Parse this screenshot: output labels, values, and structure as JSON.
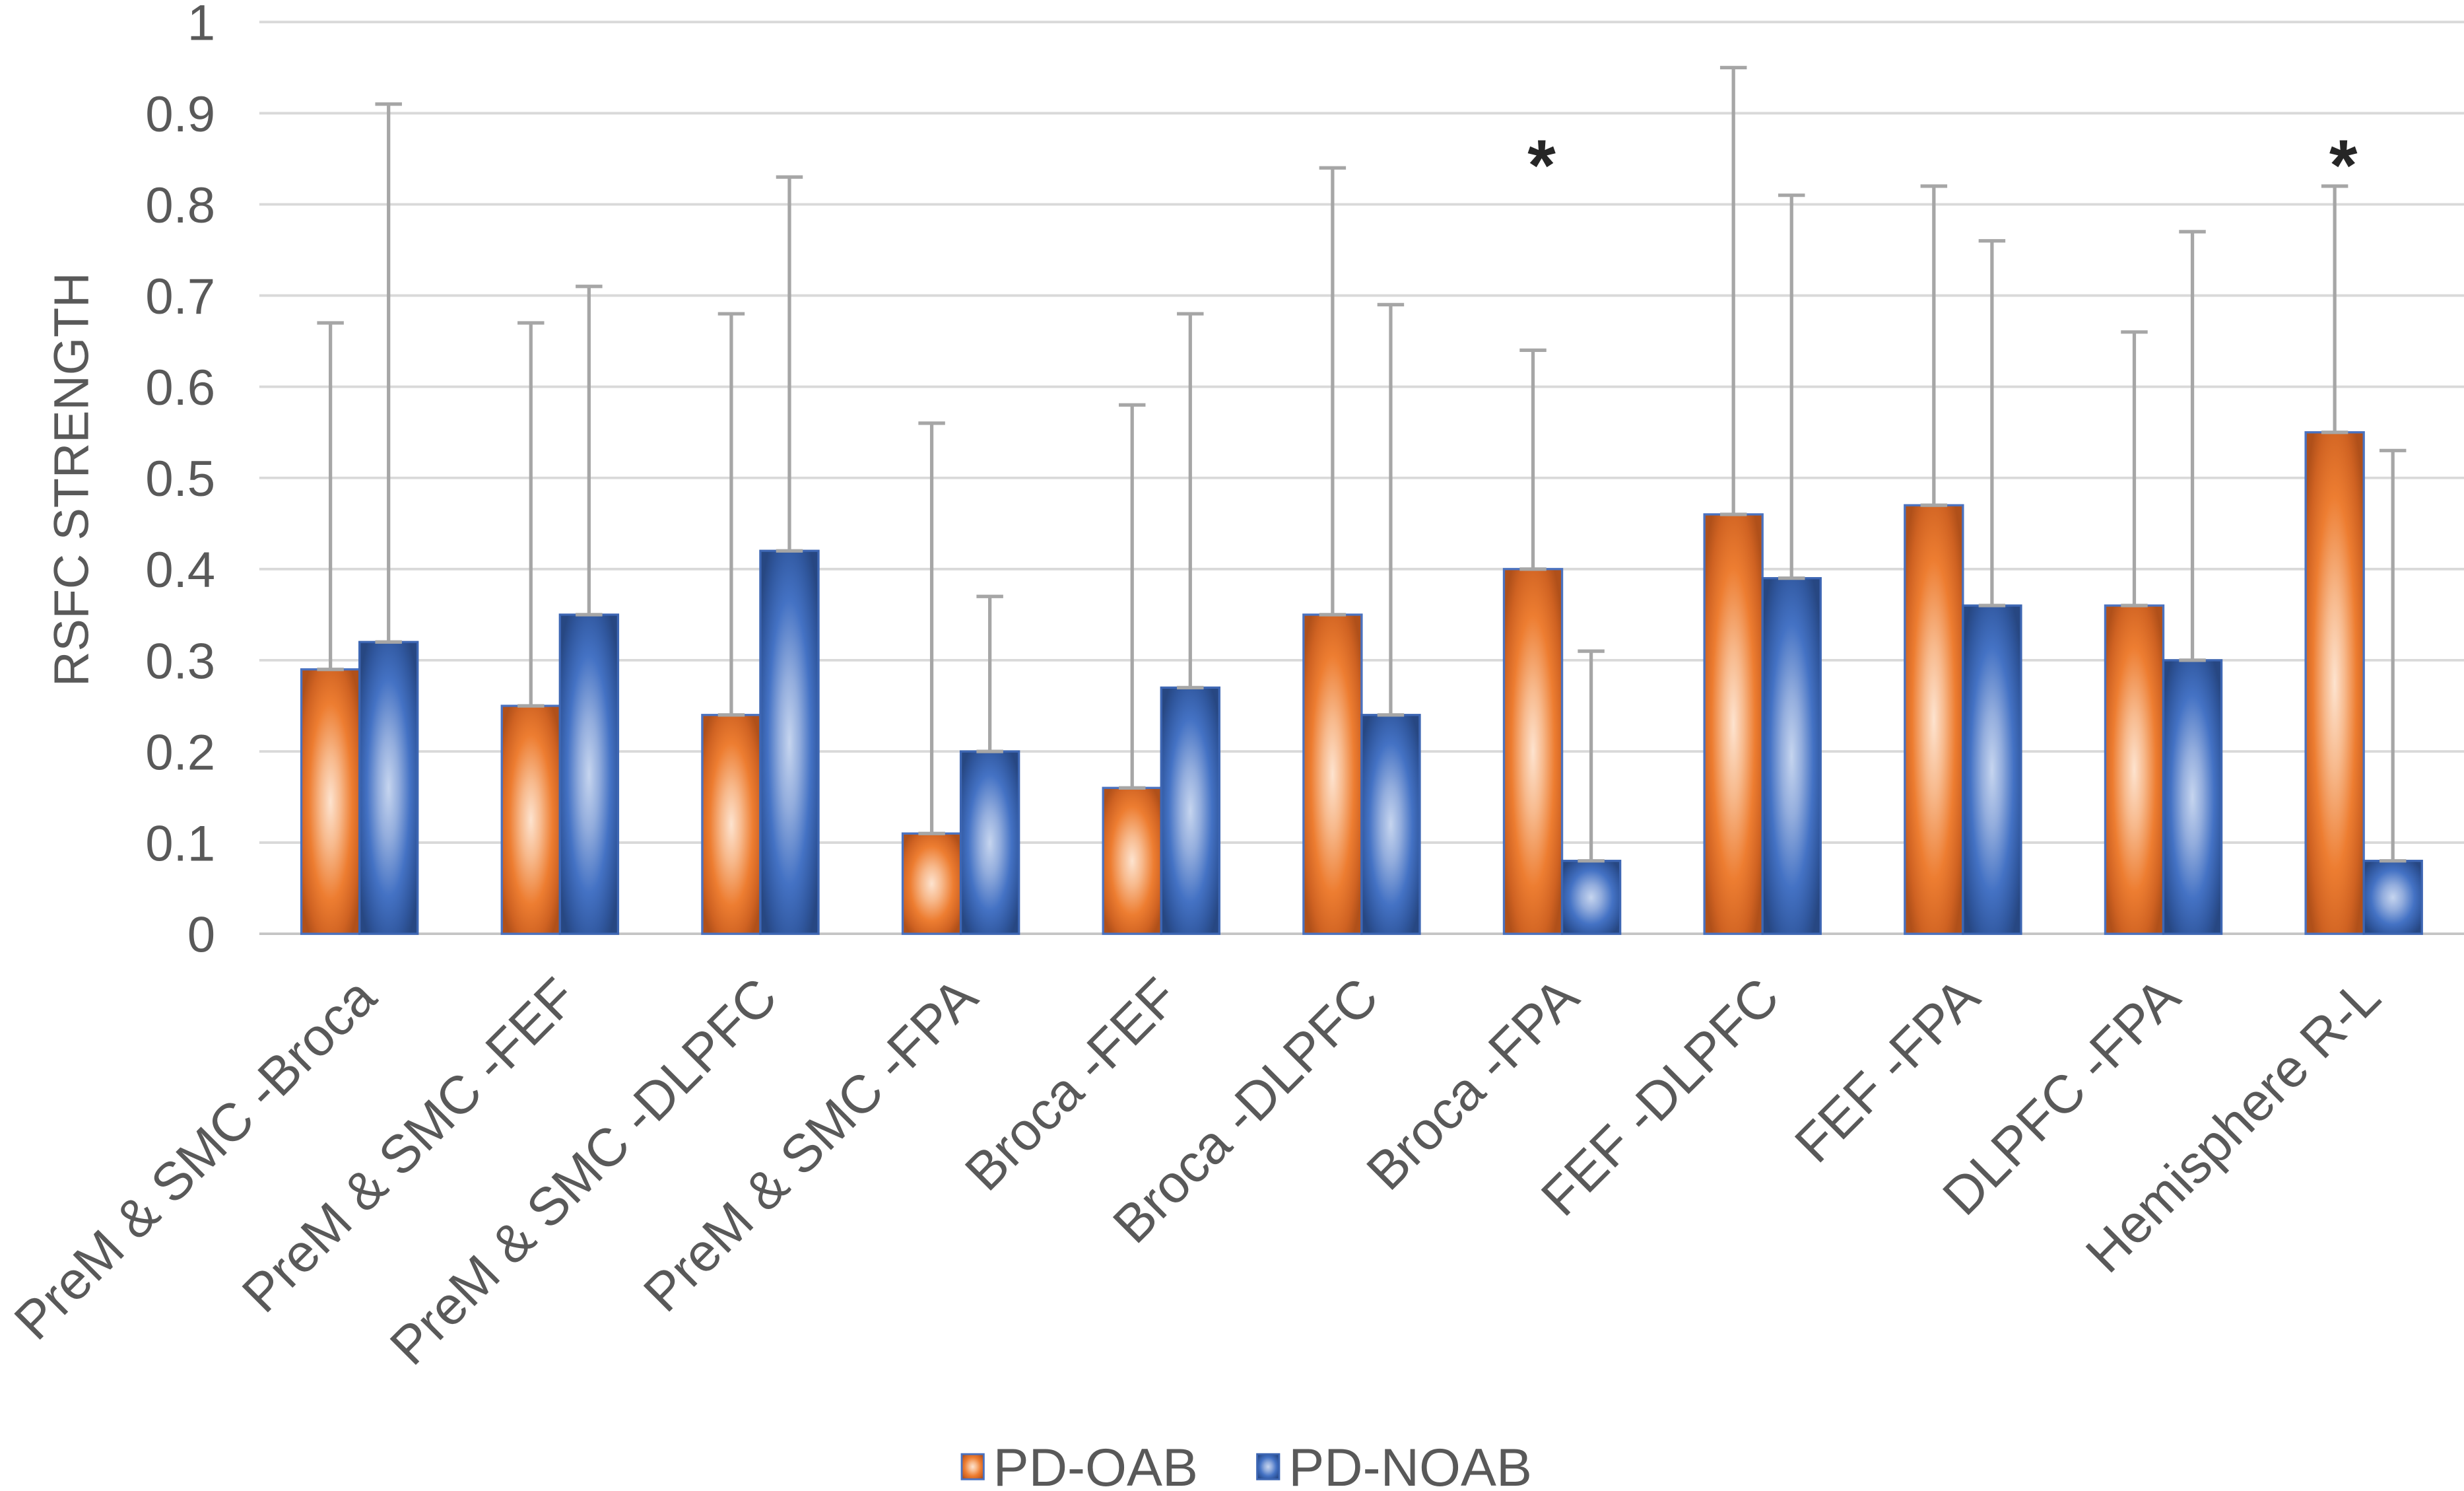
{
  "chart_data": {
    "type": "bar",
    "ylabel": "RSFC STRENGTH",
    "ylim": [
      0,
      1
    ],
    "ytick_labels": [
      "0",
      "0.1",
      "0.2",
      "0.3",
      "0.4",
      "0.5",
      "0.6",
      "0.7",
      "0.8",
      "0.9",
      "1"
    ],
    "grid": true,
    "legend": "bottom-center",
    "categories": [
      "PreM & SMC -Broca",
      "PreM & SMC -FEF",
      "PreM & SMC -DLPFC",
      "PreM & SMC -FPA",
      "Broca -FEF",
      "Broca -DLPFC",
      "Broca -FPA",
      "FEF -DLPFC",
      "FEF -FPA",
      "DLPFC -FPA",
      "Hemisphere R-L"
    ],
    "series": [
      {
        "name": "PD-OAB",
        "color": "#ed7d31",
        "values": [
          0.29,
          0.25,
          0.24,
          0.11,
          0.16,
          0.35,
          0.4,
          0.46,
          0.47,
          0.36,
          0.55
        ],
        "error_bar_upper": [
          0.67,
          0.67,
          0.68,
          0.56,
          0.58,
          0.84,
          0.64,
          0.95,
          0.82,
          0.66,
          0.82
        ]
      },
      {
        "name": "PD-NOAB",
        "color": "#4472c4",
        "values": [
          0.32,
          0.35,
          0.42,
          0.2,
          0.27,
          0.24,
          0.08,
          0.39,
          0.36,
          0.3,
          0.08
        ],
        "error_bar_upper": [
          0.91,
          0.71,
          0.83,
          0.37,
          0.68,
          0.69,
          0.31,
          0.81,
          0.76,
          0.77,
          0.53
        ]
      }
    ],
    "annotations": [
      {
        "category_index": 6,
        "text": "*"
      },
      {
        "category_index": 10,
        "text": "*"
      }
    ]
  }
}
